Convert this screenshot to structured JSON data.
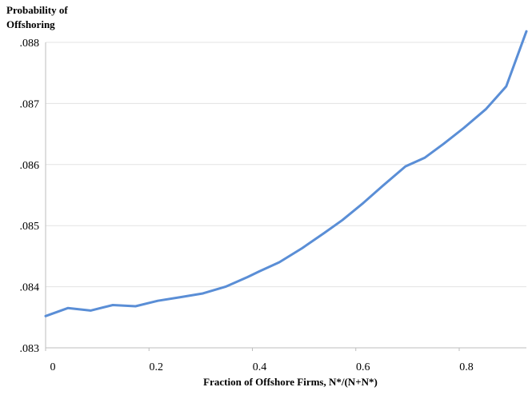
{
  "chart_data": {
    "type": "line",
    "title": "",
    "ylabel_lines": [
      "Probability of",
      "Offshoring"
    ],
    "xlabel": "Fraction of Offshore Firms, N*/(N+N*)",
    "xlim": [
      0,
      0.93
    ],
    "ylim": [
      0.083,
      0.088
    ],
    "xticks": [
      {
        "value": 0,
        "label": "0"
      },
      {
        "value": 0.2,
        "label": "0.2"
      },
      {
        "value": 0.4,
        "label": "0.4"
      },
      {
        "value": 0.6,
        "label": "0.6"
      },
      {
        "value": 0.8,
        "label": "0.8"
      }
    ],
    "yticks": [
      {
        "value": 0.083,
        "label": ".083"
      },
      {
        "value": 0.084,
        "label": ".084"
      },
      {
        "value": 0.085,
        "label": ".085"
      },
      {
        "value": 0.086,
        "label": ".086"
      },
      {
        "value": 0.087,
        "label": ".087"
      },
      {
        "value": 0.088,
        "label": ".088"
      }
    ],
    "grid": "horizontal",
    "line_color": "#5a8ed6",
    "grid_color": "#e3e3e3",
    "axis_color": "#bdbdbd",
    "series": [
      {
        "x": [
          0,
          0.043,
          0.087,
          0.13,
          0.174,
          0.217,
          0.261,
          0.304,
          0.348,
          0.391,
          0.413,
          0.452,
          0.496,
          0.539,
          0.574,
          0.613,
          0.652,
          0.696,
          0.733,
          0.77,
          0.809,
          0.852,
          0.891,
          0.93
        ],
        "y": [
          0.08352,
          0.08365,
          0.08361,
          0.0837,
          0.08368,
          0.08377,
          0.08383,
          0.08389,
          0.084,
          0.08416,
          0.08425,
          0.0844,
          0.08463,
          0.08488,
          0.08509,
          0.08536,
          0.08565,
          0.08597,
          0.08611,
          0.08634,
          0.0866,
          0.08691,
          0.08728,
          0.08818
        ]
      }
    ]
  }
}
